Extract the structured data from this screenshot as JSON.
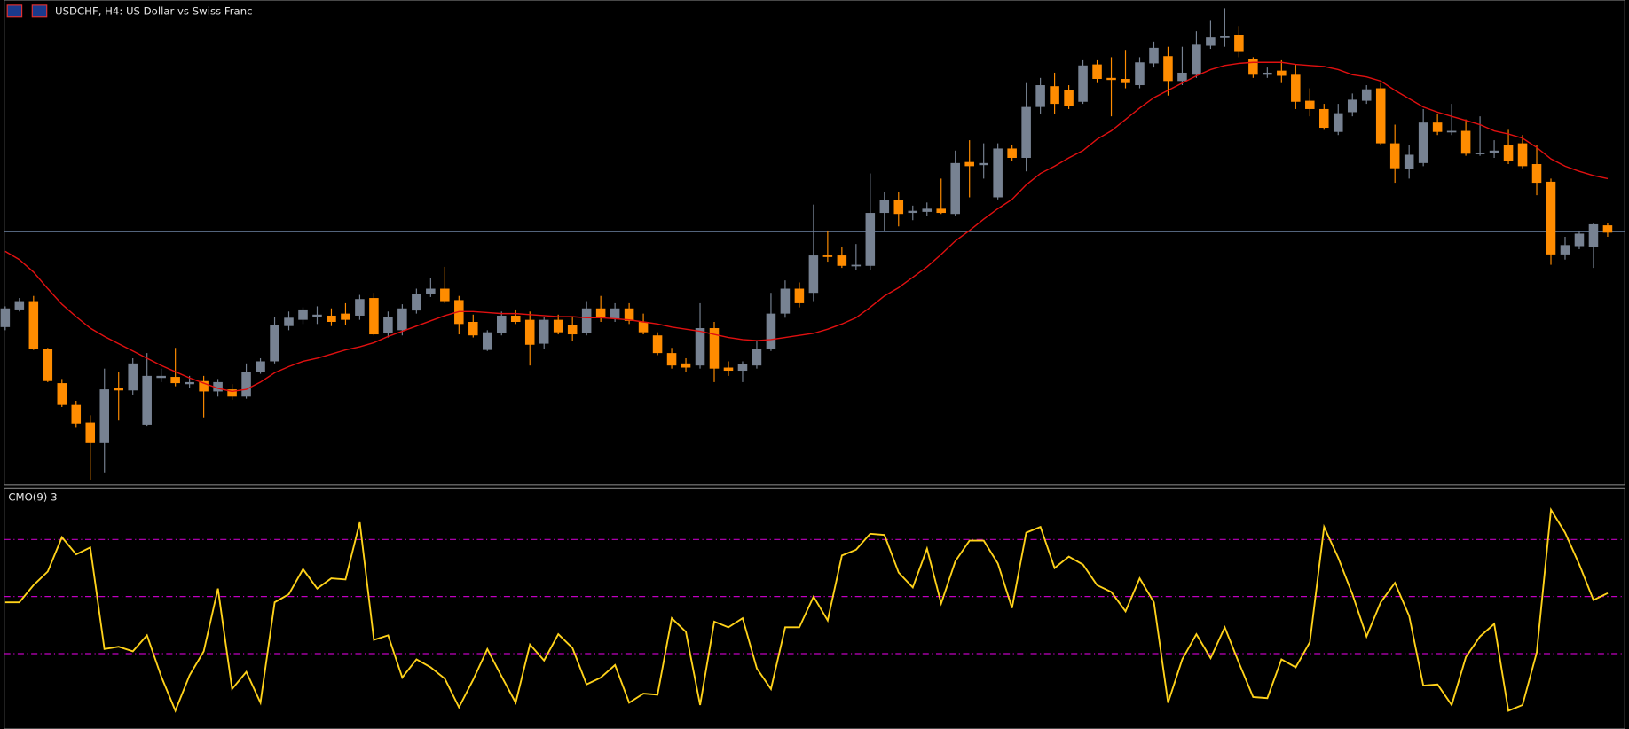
{
  "chart_data": [
    {
      "type": "candlestick",
      "title": "USDCHF, H4:  US Dollar vs Swiss Franc",
      "up_color": "#778292",
      "down_color": "#ff8c00",
      "ylim": [
        0,
        465
      ],
      "open": [
        150,
        167,
        175,
        129,
        96,
        75,
        58,
        39,
        91,
        89,
        56,
        101,
        102,
        95,
        98,
        88,
        90,
        83,
        107,
        117,
        151,
        157,
        160,
        161,
        163,
        161,
        178,
        144,
        147,
        166,
        182,
        187,
        176,
        155,
        128,
        144,
        161,
        157,
        134,
        157,
        152,
        144,
        168,
        158,
        168,
        155,
        142,
        125,
        115,
        113,
        149,
        111,
        108,
        113,
        129,
        163,
        187,
        183,
        219,
        219,
        209,
        209,
        260,
        272,
        260,
        261,
        264,
        259,
        309,
        306,
        275,
        322,
        313,
        362,
        382,
        378,
        367,
        403,
        390,
        389,
        383,
        404,
        411,
        387,
        393,
        421,
        429,
        431,
        408,
        393,
        397,
        393,
        368,
        360,
        338,
        357,
        368,
        380,
        327,
        302,
        308,
        347,
        338,
        339,
        317,
        318,
        325,
        327,
        307,
        290,
        220,
        228,
        227,
        248
      ],
      "high": [
        170,
        178,
        180,
        130,
        100,
        79,
        65,
        110,
        107,
        120,
        125,
        110,
        130,
        103,
        103,
        100,
        95,
        115,
        120,
        160,
        165,
        169,
        170,
        168,
        173,
        181,
        183,
        165,
        172,
        187,
        197,
        208,
        180,
        162,
        147,
        165,
        167,
        165,
        160,
        162,
        160,
        175,
        180,
        173,
        173,
        163,
        145,
        130,
        120,
        173,
        155,
        117,
        117,
        137,
        183,
        195,
        193,
        268,
        243,
        227,
        230,
        298,
        280,
        280,
        267,
        270,
        293,
        320,
        330,
        327,
        327,
        325,
        385,
        390,
        395,
        383,
        407,
        407,
        410,
        417,
        410,
        425,
        420,
        420,
        435,
        445,
        457,
        440,
        410,
        400,
        407,
        403,
        380,
        365,
        365,
        375,
        383,
        385,
        345,
        325,
        360,
        355,
        365,
        350,
        353,
        330,
        340,
        335,
        325,
        293,
        237,
        243,
        250,
        250
      ],
      "low": [
        147,
        165,
        128,
        97,
        73,
        53,
        3,
        10,
        60,
        85,
        55,
        97,
        93,
        91,
        63,
        83,
        80,
        81,
        105,
        115,
        147,
        153,
        153,
        151,
        152,
        157,
        142,
        140,
        142,
        163,
        179,
        173,
        143,
        140,
        127,
        142,
        153,
        113,
        129,
        143,
        137,
        142,
        155,
        155,
        153,
        143,
        123,
        110,
        107,
        110,
        97,
        103,
        97,
        110,
        127,
        159,
        169,
        175,
        213,
        207,
        205,
        205,
        243,
        247,
        253,
        257,
        259,
        257,
        275,
        293,
        273,
        310,
        300,
        355,
        355,
        360,
        365,
        385,
        353,
        380,
        380,
        400,
        373,
        383,
        390,
        418,
        420,
        410,
        390,
        390,
        385,
        360,
        353,
        340,
        335,
        353,
        365,
        325,
        289,
        293,
        305,
        335,
        335,
        315,
        315,
        313,
        307,
        303,
        277,
        210,
        215,
        225,
        207,
        237
      ],
      "close": [
        168,
        175,
        129,
        98,
        75,
        57,
        39,
        90,
        89,
        115,
        103,
        103,
        96,
        97,
        88,
        97,
        83,
        107,
        117,
        152,
        159,
        167,
        162,
        155,
        157,
        177,
        143,
        160,
        168,
        182,
        187,
        175,
        153,
        142,
        145,
        161,
        155,
        133,
        157,
        145,
        143,
        168,
        159,
        168,
        156,
        145,
        125,
        113,
        111,
        149,
        110,
        108,
        114,
        129,
        163,
        187,
        173,
        219,
        218,
        209,
        210,
        260,
        272,
        259,
        262,
        264,
        260,
        308,
        305,
        308,
        322,
        313,
        362,
        383,
        365,
        363,
        402,
        389,
        388,
        385,
        405,
        419,
        387,
        395,
        422,
        429,
        430,
        415,
        393,
        395,
        392,
        367,
        360,
        342,
        356,
        369,
        379,
        327,
        303,
        316,
        347,
        338,
        339,
        317,
        318,
        320,
        310,
        305,
        289,
        220,
        229,
        240,
        249,
        241
      ],
      "ma": {
        "color": "#e01010",
        "values": [
          223,
          215,
          203,
          187,
          172,
          160,
          149,
          141,
          134,
          127,
          120,
          113,
          107,
          101,
          96,
          91,
          88,
          90,
          97,
          106,
          112,
          117,
          120,
          124,
          128,
          131,
          135,
          141,
          146,
          151,
          156,
          161,
          165,
          165,
          164,
          163,
          163,
          162,
          161,
          160,
          160,
          159,
          159,
          158,
          157,
          155,
          153,
          150,
          148,
          146,
          143,
          140,
          138,
          137,
          138,
          140,
          142,
          144,
          148,
          153,
          159,
          169,
          180,
          188,
          198,
          208,
          220,
          233,
          243,
          254,
          264,
          273,
          287,
          298,
          305,
          313,
          320,
          331,
          339,
          350,
          361,
          371,
          378,
          385,
          392,
          398,
          402,
          404,
          405,
          405,
          405,
          403,
          402,
          401,
          398,
          393,
          391,
          387,
          378,
          370,
          362,
          357,
          353,
          349,
          345,
          339,
          336,
          332,
          323,
          312,
          305,
          300,
          296,
          293
        ]
      },
      "price_line": 242,
      "price_line_color": "#6f86a6"
    },
    {
      "type": "line",
      "title": "CMO(9) 3",
      "color": "#ffd21a",
      "ylim": [
        -116,
        95
      ],
      "levels": [
        50,
        0,
        -50
      ],
      "level_color": "#c000c0",
      "values": [
        -5,
        -5,
        10,
        22,
        52,
        37,
        43,
        -46,
        -44,
        -48,
        -34,
        -70,
        -100,
        -69,
        -48,
        7,
        -81,
        -66,
        -93,
        -5,
        2,
        24,
        7,
        16,
        15,
        65,
        -38,
        -34,
        -71,
        -55,
        -62,
        -72,
        -97,
        -73,
        -46,
        -70,
        -93,
        -42,
        -56,
        -33,
        -45,
        -77,
        -71,
        -60,
        -93,
        -85,
        -86,
        -19,
        -31,
        -95,
        -22,
        -27,
        -19,
        -63,
        -81,
        -27,
        -27,
        0,
        -21,
        36,
        41,
        55,
        54,
        21,
        8,
        42,
        -6,
        31,
        49,
        49,
        29,
        -10,
        56,
        61,
        25,
        35,
        28,
        10,
        4,
        -13,
        16,
        -5,
        -93,
        -55,
        -33,
        -54,
        -27,
        -58,
        -88,
        -89,
        -55,
        -62,
        -40,
        61,
        34,
        2,
        -35,
        -5,
        12,
        -17,
        -78,
        -77,
        -95,
        -53,
        -35,
        -24,
        -100,
        -95,
        -49,
        76,
        56,
        28,
        -3,
        3
      ]
    }
  ]
}
